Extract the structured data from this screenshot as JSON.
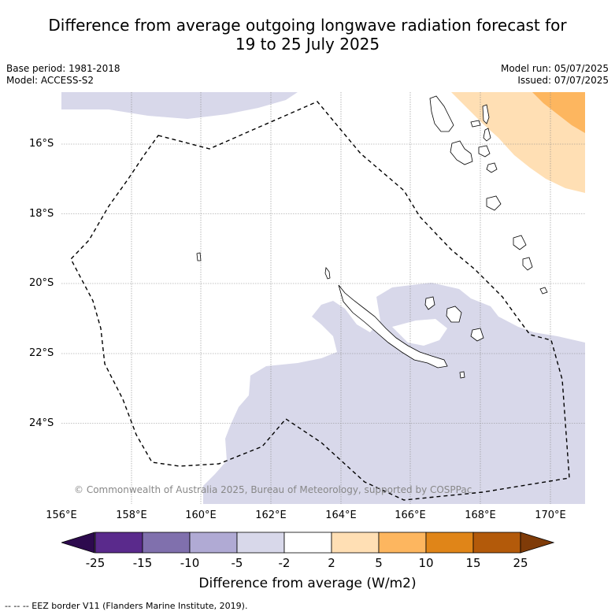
{
  "title_line1": "Difference from average outgoing longwave radiation forecast for",
  "title_line2": "19 to 25 July 2025",
  "base_period": "Base period: 1981-2018",
  "model": "Model: ACCESS-S2",
  "model_run": "Model run: 05/07/2025",
  "issued": "Issued: 07/07/2025",
  "copyright": "© Commonwealth of Australia 2025, Bureau of Meteorology, supported by COSPPac",
  "lat_ticks": [
    "16°S",
    "18°S",
    "20°S",
    "22°S",
    "24°S"
  ],
  "lon_ticks": [
    "156°E",
    "158°E",
    "160°E",
    "162°E",
    "164°E",
    "166°E",
    "168°E",
    "170°E"
  ],
  "colorbar": {
    "label": "Difference from average (W/m2)",
    "ticks": [
      "-25",
      "-15",
      "-10",
      "-5",
      "-2",
      "2",
      "5",
      "10",
      "15",
      "25"
    ],
    "colors": [
      "#2d0a4e",
      "#5a2a8c",
      "#8070ad",
      "#b0aad4",
      "#d8d8ea",
      "#ffffff",
      "#ffdfb4",
      "#fdb65f",
      "#e08518",
      "#b35a0a",
      "#7f3b08"
    ]
  },
  "footnote": "--  --  -- EEZ border V11 (Flanders Marine Institute, 2019).",
  "map_extent": {
    "lon_min": 156,
    "lon_max": 171,
    "lat_north": -14.5,
    "lat_south": -26.3
  }
}
